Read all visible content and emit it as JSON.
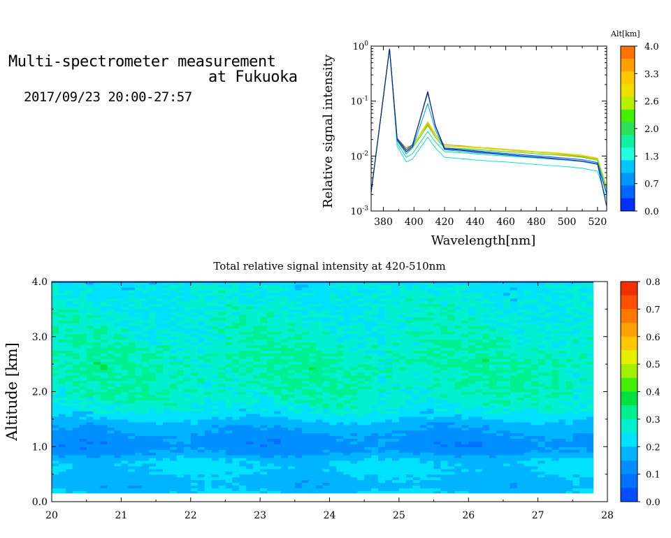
{
  "header": {
    "title_line1": "Multi-spectrometer measurement",
    "title_line2": "at Fukuoka",
    "datetime": "2017/09/23 20:00-27:57"
  },
  "chart_data": [
    {
      "type": "line",
      "xlabel": "Wavelength[nm]",
      "ylabel": "Relative signal intensity",
      "y_scale": "log",
      "xlim": [
        372,
        526
      ],
      "ylim": [
        0.001,
        1
      ],
      "x_ticks": [
        380,
        400,
        420,
        440,
        460,
        480,
        500,
        520
      ],
      "y_ticks": [
        {
          "value": 1,
          "mantissa": "10",
          "exp": "0"
        },
        {
          "value": 0.1,
          "mantissa": "10",
          "exp": "-1"
        },
        {
          "value": 0.01,
          "mantissa": "10",
          "exp": "-2"
        },
        {
          "value": 0.001,
          "mantissa": "10",
          "exp": "-3"
        }
      ],
      "grid": false,
      "colorbar": {
        "title": "Alt[km]",
        "labels": [
          "4.0",
          "3.3",
          "2.6",
          "2.0",
          "1.3",
          "0.7",
          "0.0"
        ],
        "colors": [
          "#ff7300",
          "#ffa000",
          "#ffc800",
          "#f0e000",
          "#b4f000",
          "#40f000",
          "#2ce05a",
          "#10f0a0",
          "#20ffe0",
          "#00c8ff",
          "#0096ff",
          "#0064ff",
          "#0030ff"
        ]
      },
      "x": [
        372,
        384,
        389,
        395,
        399,
        409,
        414,
        420,
        430,
        440,
        450,
        460,
        470,
        480,
        490,
        500,
        510,
        520,
        526
      ],
      "series": [
        {
          "color": "#ff8000",
          "values": [
            0.0022,
            0.9,
            0.021,
            0.014,
            0.016,
            0.038,
            0.024,
            0.016,
            0.0155,
            0.0145,
            0.0135,
            0.013,
            0.0122,
            0.0118,
            0.0112,
            0.0105,
            0.0098,
            0.0088,
            0.0026
          ]
        },
        {
          "color": "#ffc000",
          "values": [
            0.0022,
            0.9,
            0.02,
            0.013,
            0.015,
            0.04,
            0.024,
            0.015,
            0.015,
            0.0145,
            0.014,
            0.0133,
            0.0127,
            0.012,
            0.0116,
            0.011,
            0.0103,
            0.0092,
            0.0027
          ]
        },
        {
          "color": "#b4f000",
          "values": [
            0.0022,
            0.9,
            0.02,
            0.013,
            0.015,
            0.042,
            0.025,
            0.015,
            0.0148,
            0.0142,
            0.0137,
            0.013,
            0.0125,
            0.0118,
            0.0113,
            0.0108,
            0.0101,
            0.009,
            0.0026
          ]
        },
        {
          "color": "#40e000",
          "values": [
            0.0022,
            0.9,
            0.019,
            0.012,
            0.014,
            0.036,
            0.022,
            0.014,
            0.0138,
            0.0132,
            0.0126,
            0.012,
            0.0116,
            0.011,
            0.0106,
            0.0101,
            0.0095,
            0.0084,
            0.0025
          ]
        },
        {
          "color": "#20e0a0",
          "values": [
            0.0022,
            0.9,
            0.017,
            0.0095,
            0.011,
            0.028,
            0.018,
            0.012,
            0.0115,
            0.011,
            0.0104,
            0.01,
            0.0096,
            0.0092,
            0.0088,
            0.0084,
            0.0079,
            0.007,
            0.0021
          ]
        },
        {
          "color": "#20e0e0",
          "values": [
            0.0022,
            0.9,
            0.015,
            0.0078,
            0.0088,
            0.022,
            0.014,
            0.0095,
            0.009,
            0.0085,
            0.0081,
            0.0078,
            0.0074,
            0.007,
            0.0067,
            0.0064,
            0.006,
            0.0053,
            0.0016
          ]
        },
        {
          "color": "#00a0ff",
          "values": [
            0.0022,
            0.9,
            0.019,
            0.011,
            0.014,
            0.09,
            0.03,
            0.013,
            0.0122,
            0.0115,
            0.011,
            0.0104,
            0.0098,
            0.0094,
            0.0089,
            0.0085,
            0.008,
            0.0071,
            0.002
          ]
        },
        {
          "color": "#0050ff",
          "values": [
            0.0022,
            0.9,
            0.021,
            0.013,
            0.016,
            0.14,
            0.036,
            0.014,
            0.0132,
            0.0125,
            0.0118,
            0.0112,
            0.0106,
            0.0101,
            0.0096,
            0.0091,
            0.0086,
            0.0076,
            0.0021
          ]
        },
        {
          "color": "#102080",
          "values": [
            0.0022,
            0.9,
            0.02,
            0.012,
            0.015,
            0.15,
            0.035,
            0.0135,
            0.0128,
            0.012,
            0.0113,
            0.0107,
            0.0101,
            0.0096,
            0.0091,
            0.0086,
            0.0081,
            0.0072,
            0.0012
          ]
        }
      ]
    },
    {
      "type": "heatmap",
      "title": "Total relative signal intensity at 420-510nm",
      "xlabel": "",
      "ylabel": "Altitude [km]",
      "xlim": [
        20,
        28
      ],
      "ylim": [
        0,
        4
      ],
      "x_ticks": [
        "20",
        "21",
        "22",
        "23",
        "24",
        "25",
        "26",
        "27",
        "28"
      ],
      "y_ticks": [
        "0.0",
        "1.0",
        "2.0",
        "3.0",
        "4.0"
      ],
      "data_x_range": [
        20,
        27.8
      ],
      "data_y_range": [
        0.15,
        4.0
      ],
      "colorbar": {
        "labels": [
          "0.8",
          "0.7",
          "0.6",
          "0.5",
          "0.4",
          "0.3",
          "0.2",
          "0.1",
          "0.0"
        ],
        "colors": [
          "#f03000",
          "#ff5000",
          "#ff7800",
          "#ffa000",
          "#ffc800",
          "#e6f000",
          "#a0f000",
          "#40f000",
          "#00e040",
          "#00f090",
          "#00f0d0",
          "#00e0ff",
          "#00b4ff",
          "#0090ff",
          "#0070ff",
          "#0050ff"
        ]
      },
      "altitude_profile_km": [
        0.15,
        0.3,
        0.45,
        0.6,
        0.75,
        0.9,
        1.05,
        1.2,
        1.4,
        1.6,
        1.8,
        2.0,
        2.5,
        3.0,
        3.5,
        4.0
      ],
      "intensity_profile": [
        0.2,
        0.17,
        0.19,
        0.21,
        0.2,
        0.14,
        0.12,
        0.14,
        0.17,
        0.23,
        0.27,
        0.29,
        0.3,
        0.28,
        0.26,
        0.24
      ]
    }
  ]
}
